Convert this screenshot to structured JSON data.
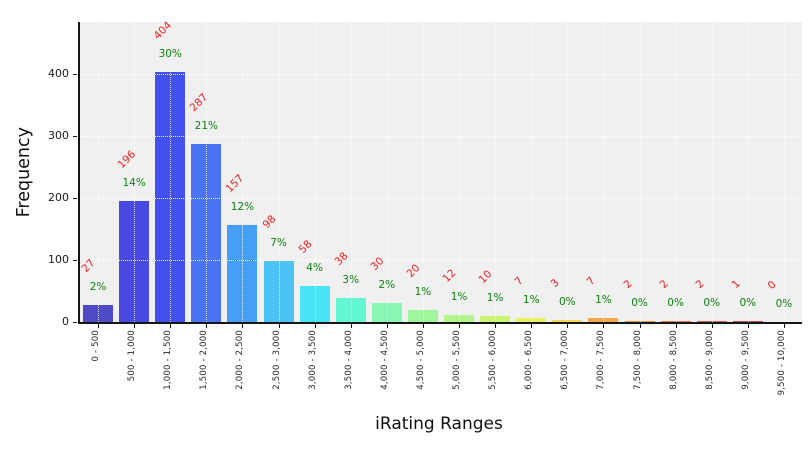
{
  "chart_data": {
    "type": "bar",
    "title": "",
    "xlabel": "iRating Ranges",
    "ylabel": "Frequency",
    "categories": [
      "0 - 500",
      "500 - 1,000",
      "1,000 - 1,500",
      "1,500 - 2,000",
      "2,000 - 2,500",
      "2,500 - 3,000",
      "3,000 - 3,500",
      "3,500 - 4,000",
      "4,000 - 4,500",
      "4,500 - 5,000",
      "5,000 - 5,500",
      "5,500 - 6,000",
      "6,000 - 6,500",
      "6,500 - 7,000",
      "7,000 - 7,500",
      "7,500 - 8,000",
      "8,000 - 8,500",
      "8,500 - 9,000",
      "9,000 - 9,500",
      "9,500 - 10,000"
    ],
    "values": [
      27,
      196,
      404,
      287,
      157,
      98,
      58,
      38,
      30,
      20,
      12,
      10,
      7,
      3,
      7,
      2,
      2,
      2,
      1,
      0
    ],
    "count_labels": [
      "27",
      "196",
      "404",
      "287",
      "157",
      "98",
      "58",
      "38",
      "30",
      "20",
      "12",
      "10",
      "7",
      "3",
      "7",
      "2",
      "2",
      "2",
      "1",
      "0"
    ],
    "percent_labels": [
      "2%",
      "14%",
      "30%",
      "21%",
      "12%",
      "7%",
      "4%",
      "3%",
      "2%",
      "1%",
      "1%",
      "1%",
      "1%",
      "0%",
      "1%",
      "0%",
      "0%",
      "0%",
      "0%",
      "0%"
    ],
    "bar_colors": [
      "#4f4bc6",
      "#4749e2",
      "#4150ee",
      "#4a74f3",
      "#45a0f5",
      "#4cc3f7",
      "#49e4f5",
      "#63f7d3",
      "#88f7b3",
      "#a0f79b",
      "#b2f58c",
      "#c9f573",
      "#e9f25e",
      "#f3da4d",
      "#f7a648",
      "#f5903f",
      "#ec7549",
      "#dd5c50",
      "#c84b52",
      "#b03a3f"
    ],
    "y_ticks": [
      0,
      100,
      200,
      300,
      400
    ],
    "ylim": [
      0,
      484
    ],
    "grid": "dotted",
    "legend": "none",
    "count_label_color": "#ee2020",
    "percent_label_color": "#0d810d",
    "plot_bg": "#f0f0f0",
    "spine_color": "#151515"
  }
}
